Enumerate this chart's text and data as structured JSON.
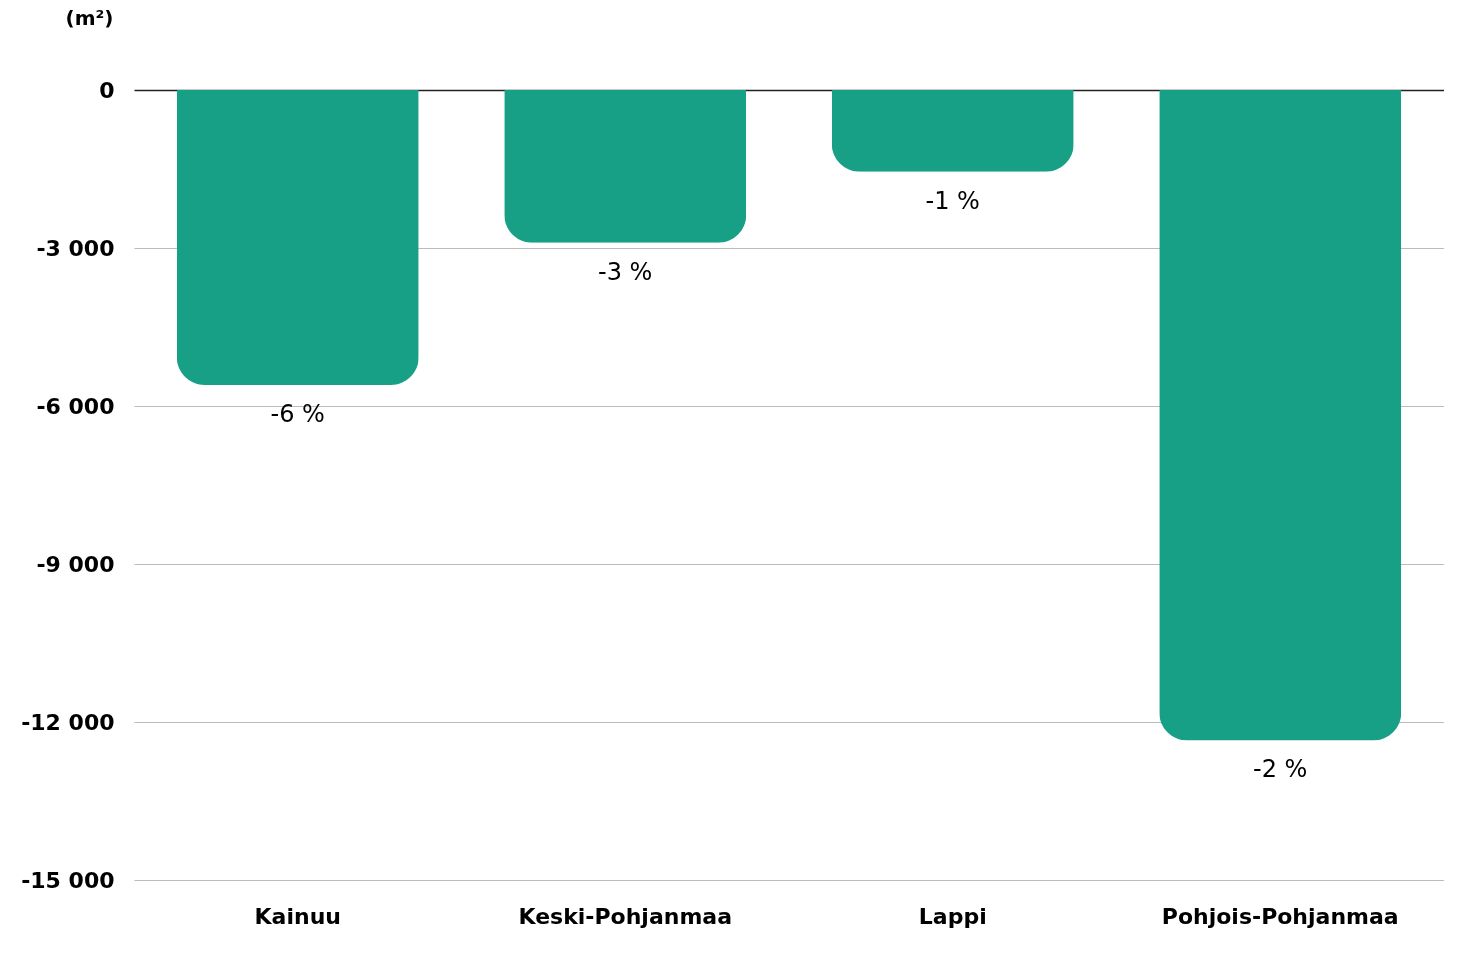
{
  "chart_data": {
    "type": "bar",
    "ylabel": "(m²)",
    "categories": [
      "Kainuu",
      "Keski-Pohjanmaa",
      "Lappi",
      "Pohjois-Pohjanmaa"
    ],
    "values": [
      -5600,
      -2900,
      -1550,
      -12350
    ],
    "color": "#17a085",
    "ylim": [
      -15000,
      0
    ],
    "yticks": [
      {
        "value": 0,
        "label": "0"
      },
      {
        "value": -3000,
        "label": "-3 000"
      },
      {
        "value": -6000,
        "label": "-6 000"
      },
      {
        "value": -9000,
        "label": "-9 000"
      },
      {
        "value": -12000,
        "label": "-12 000"
      },
      {
        "value": -15000,
        "label": "-15 000"
      }
    ],
    "annotations": [
      {
        "text": "-6 %",
        "x": "Kainuu",
        "y": -5600
      },
      {
        "text": "-3 %",
        "x": "Keski-Pohjanmaa",
        "y": -2900
      },
      {
        "text": "-1 %",
        "x": "Lappi",
        "y": -1550
      },
      {
        "text": "-2 %",
        "x": "Pohjois-Pohjanmaa",
        "y": -12350
      }
    ],
    "grid": "y"
  }
}
